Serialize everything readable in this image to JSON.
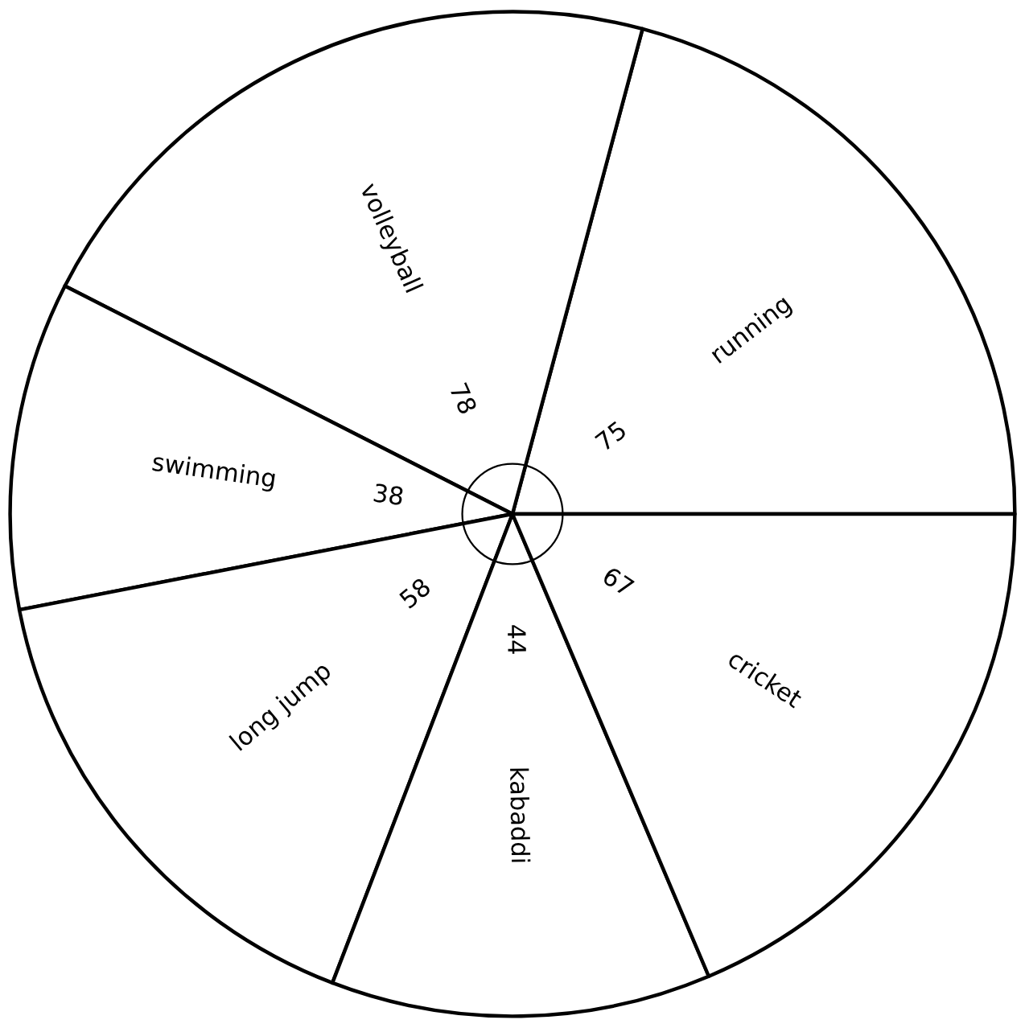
{
  "chart_data": {
    "type": "pie",
    "categories": [
      "running",
      "volleyball",
      "swimming",
      "long jump",
      "kabaddi",
      "cricket"
    ],
    "values": [
      75,
      78,
      38,
      58,
      44,
      67
    ],
    "colors": [
      "#ffffff",
      "#ffffff",
      "#ffffff",
      "#ffffff",
      "#ffffff",
      "#ffffff"
    ],
    "data_labels": true,
    "legend": false
  }
}
